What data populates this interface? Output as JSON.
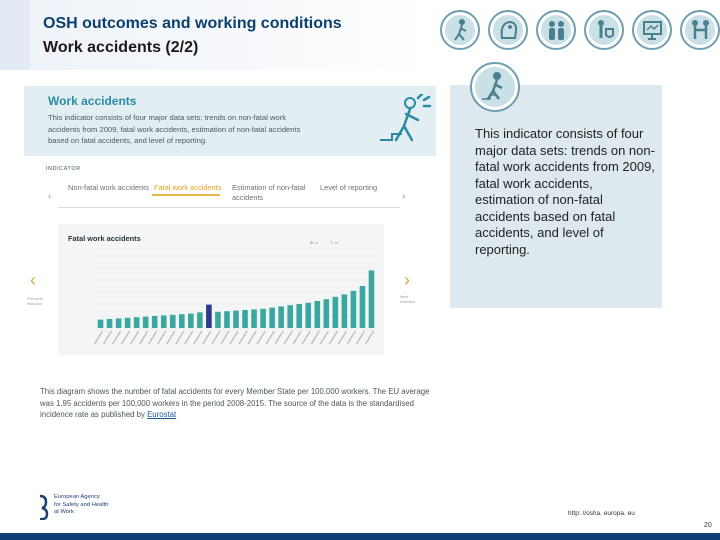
{
  "slide": {
    "title": "OSH outcomes and working conditions",
    "subtitle": "Work accidents (2/2)",
    "description": "This indicator consists of four major data sets: trends on non-fatal work accidents from 2009, fatal work accidents, estimation of non-fatal accidents based on fatal accidents, and level of reporting.",
    "url": "http: //osha. europa. eu",
    "page_number": "20",
    "logo_text": [
      "European Agency",
      "for Safety and Health",
      "at Work"
    ],
    "header_icons": [
      "walking-worker-icon",
      "head-health-icon",
      "people-icon",
      "worker-safety-icon",
      "presentation-icon",
      "two-people-icon"
    ],
    "colors": {
      "title": "#0a3f6e",
      "accent_teal": "#3aa8a0",
      "bottom_bar": "#0c3f73"
    }
  },
  "screenshot": {
    "section_title": "Work accidents",
    "section_text": "This indicator consists of four major data sets: trends on non-fatal work accidents from 2009, fatal work accidents, estimation of non-fatal accidents based on fatal accidents, and level of reporting.",
    "indicator_label": "INDICATOR",
    "tabs": [
      {
        "label": "Non-fatal work accidents",
        "active": false
      },
      {
        "label": "Fatal work accidents",
        "active": true
      },
      {
        "label": "Estimation of non-fatal accidents",
        "active": false
      },
      {
        "label": "Level of reporting",
        "active": false
      }
    ],
    "prev_label": "Previous indicator",
    "next_label": "Next indicator",
    "footer_text": "This diagram shows the number of fatal accidents for every Member State per 100,000 workers. The EU average was 1.95 accidents per 100,000 workers in the period 2008-2015. The source of the data is the standardised incidence rate as published by",
    "footer_link": "Eurostat"
  },
  "chart_data": {
    "type": "bar",
    "title": "Fatal work accidents",
    "values": [
      0.7,
      0.75,
      0.8,
      0.85,
      0.9,
      0.95,
      1.0,
      1.05,
      1.1,
      1.15,
      1.2,
      1.3,
      1.95,
      1.35,
      1.4,
      1.45,
      1.5,
      1.55,
      1.6,
      1.7,
      1.8,
      1.9,
      2.0,
      2.1,
      2.25,
      2.4,
      2.6,
      2.8,
      3.1,
      3.5,
      4.8
    ],
    "highlight_index": 12,
    "ylim": [
      0,
      6
    ],
    "colors": {
      "bar": "#3aa8a0",
      "highlight": "#2a3a8c"
    }
  }
}
